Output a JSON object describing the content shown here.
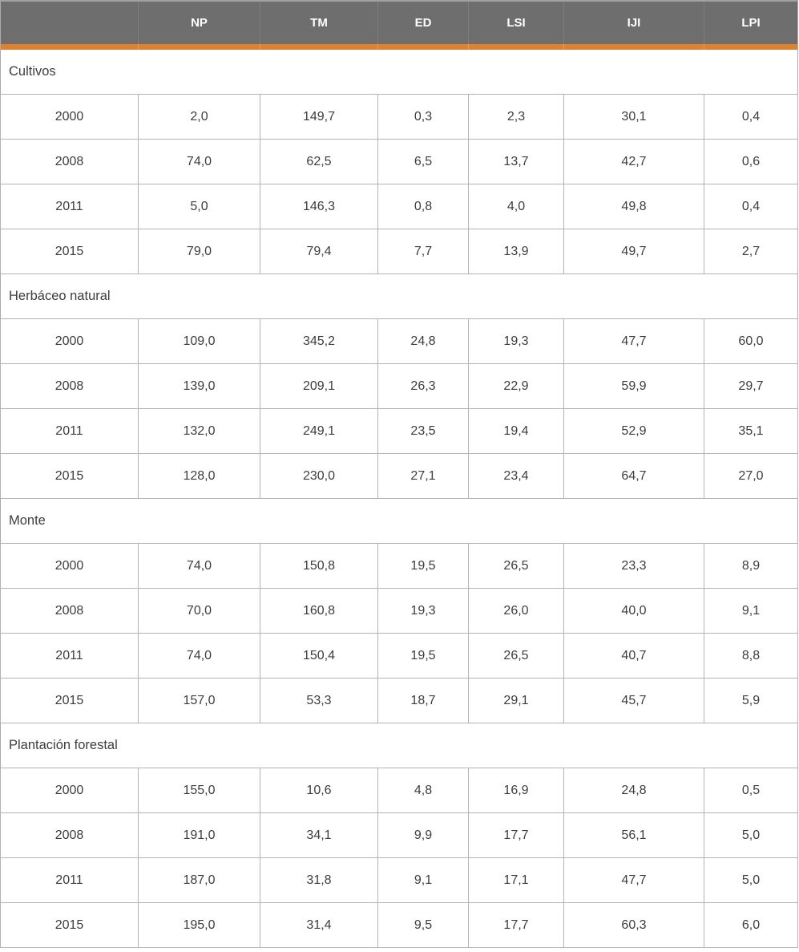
{
  "table": {
    "accent_color": "#E0812E",
    "header_bg": "#6E6E6E",
    "header_text_color": "#FFFFFF",
    "border_color": "#B3B3B3",
    "columns": [
      "",
      "NP",
      "TM",
      "ED",
      "LSI",
      "IJI",
      "LPI"
    ],
    "sections": [
      {
        "label": "Cultivos",
        "rows": [
          {
            "year": "2000",
            "values": [
              "2,0",
              "149,7",
              "0,3",
              "2,3",
              "30,1",
              "0,4"
            ]
          },
          {
            "year": "2008",
            "values": [
              "74,0",
              "62,5",
              "6,5",
              "13,7",
              "42,7",
              "0,6"
            ]
          },
          {
            "year": "2011",
            "values": [
              "5,0",
              "146,3",
              "0,8",
              "4,0",
              "49,8",
              "0,4"
            ]
          },
          {
            "year": "2015",
            "values": [
              "79,0",
              "79,4",
              "7,7",
              "13,9",
              "49,7",
              "2,7"
            ]
          }
        ]
      },
      {
        "label": "Herbáceo natural",
        "rows": [
          {
            "year": "2000",
            "values": [
              "109,0",
              "345,2",
              "24,8",
              "19,3",
              "47,7",
              "60,0"
            ]
          },
          {
            "year": "2008",
            "values": [
              "139,0",
              "209,1",
              "26,3",
              "22,9",
              "59,9",
              "29,7"
            ]
          },
          {
            "year": "2011",
            "values": [
              "132,0",
              "249,1",
              "23,5",
              "19,4",
              "52,9",
              "35,1"
            ]
          },
          {
            "year": "2015",
            "values": [
              "128,0",
              "230,0",
              "27,1",
              "23,4",
              "64,7",
              "27,0"
            ]
          }
        ]
      },
      {
        "label": "Monte",
        "rows": [
          {
            "year": "2000",
            "values": [
              "74,0",
              "150,8",
              "19,5",
              "26,5",
              "23,3",
              "8,9"
            ]
          },
          {
            "year": "2008",
            "values": [
              "70,0",
              "160,8",
              "19,3",
              "26,0",
              "40,0",
              "9,1"
            ]
          },
          {
            "year": "2011",
            "values": [
              "74,0",
              "150,4",
              "19,5",
              "26,5",
              "40,7",
              "8,8"
            ]
          },
          {
            "year": "2015",
            "values": [
              "157,0",
              "53,3",
              "18,7",
              "29,1",
              "45,7",
              "5,9"
            ]
          }
        ]
      },
      {
        "label": "Plantación forestal",
        "rows": [
          {
            "year": "2000",
            "values": [
              "155,0",
              "10,6",
              "4,8",
              "16,9",
              "24,8",
              "0,5"
            ]
          },
          {
            "year": "2008",
            "values": [
              "191,0",
              "34,1",
              "9,9",
              "17,7",
              "56,1",
              "5,0"
            ]
          },
          {
            "year": "2011",
            "values": [
              "187,0",
              "31,8",
              "9,1",
              "17,1",
              "47,7",
              "5,0"
            ]
          },
          {
            "year": "2015",
            "values": [
              "195,0",
              "31,4",
              "9,5",
              "17,7",
              "60,3",
              "6,0"
            ]
          }
        ]
      }
    ]
  }
}
